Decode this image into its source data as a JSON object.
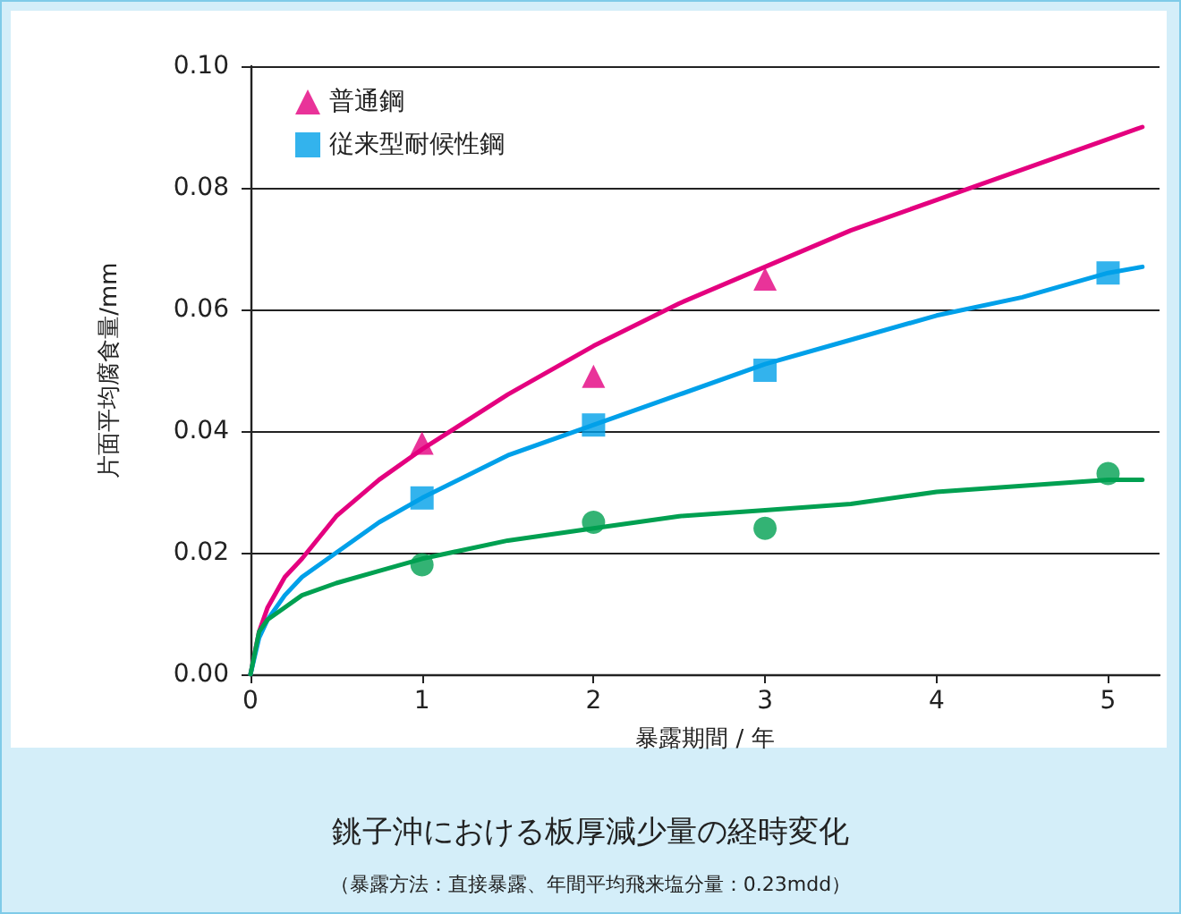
{
  "chart_data": {
    "type": "scatter",
    "title": "銚子沖における板厚減少量の経時変化",
    "subtitle": "（暴露方法：直接暴露、年間平均飛来塩分量：0.23mdd）",
    "xlabel": "暴露期間 / 年",
    "ylabel": "片面平均腐食量/mm",
    "xlim": [
      0,
      5.3
    ],
    "xticks": [
      0,
      1,
      2,
      3,
      4,
      5
    ],
    "ylim": [
      0,
      0.1
    ],
    "yticks": [
      {
        "value": 0,
        "label": "0.00"
      },
      {
        "value": 0.02,
        "label": "0.02"
      },
      {
        "value": 0.04,
        "label": "0.04"
      },
      {
        "value": 0.06,
        "label": "0.06"
      },
      {
        "value": 0.08,
        "label": "0.08"
      },
      {
        "value": 0.1,
        "label": "0.10"
      }
    ],
    "grid": "y",
    "legend": "top left",
    "series": [
      {
        "name": "普通鋼",
        "color": "#e4007f",
        "marker": "triangle",
        "x": [
          1,
          2,
          3
        ],
        "values": [
          0.038,
          0.049,
          0.065
        ]
      },
      {
        "name": "従来型耐候性鋼",
        "color": "#00a0e9",
        "marker": "square",
        "x": [
          1,
          2,
          3,
          5
        ],
        "values": [
          0.029,
          0.041,
          0.05,
          0.066
        ]
      },
      {
        "color": "#00a051",
        "marker": "circle",
        "x": [
          1,
          2,
          3,
          5
        ],
        "values": [
          0.018,
          0.025,
          0.024,
          0.033
        ]
      },
      {
        "type": "line",
        "color": "#e4007f",
        "marker": "none",
        "x": [
          0,
          0.05,
          0.1,
          0.2,
          0.3,
          0.5,
          0.75,
          1,
          1.5,
          2,
          2.5,
          3,
          3.5,
          4,
          4.5,
          5,
          5.2
        ],
        "values": [
          0,
          0.007,
          0.011,
          0.016,
          0.019,
          0.026,
          0.032,
          0.037,
          0.046,
          0.054,
          0.061,
          0.067,
          0.073,
          0.078,
          0.083,
          0.088,
          0.09
        ]
      },
      {
        "type": "line",
        "color": "#00a0e9",
        "marker": "none",
        "x": [
          0,
          0.05,
          0.1,
          0.2,
          0.3,
          0.5,
          0.75,
          1,
          1.5,
          2,
          2.5,
          3,
          3.5,
          4,
          4.5,
          5,
          5.2
        ],
        "values": [
          0,
          0.006,
          0.009,
          0.013,
          0.016,
          0.02,
          0.025,
          0.029,
          0.036,
          0.041,
          0.046,
          0.051,
          0.055,
          0.059,
          0.062,
          0.066,
          0.067
        ]
      },
      {
        "type": "line",
        "color": "#00a051",
        "marker": "none",
        "x": [
          0,
          0.05,
          0.1,
          0.2,
          0.3,
          0.5,
          0.75,
          1,
          1.5,
          2,
          2.5,
          3,
          3.5,
          4,
          4.5,
          5,
          5.2
        ],
        "values": [
          0,
          0.007,
          0.009,
          0.011,
          0.013,
          0.015,
          0.017,
          0.019,
          0.022,
          0.024,
          0.026,
          0.027,
          0.028,
          0.03,
          0.031,
          0.032,
          0.032
        ]
      }
    ]
  }
}
